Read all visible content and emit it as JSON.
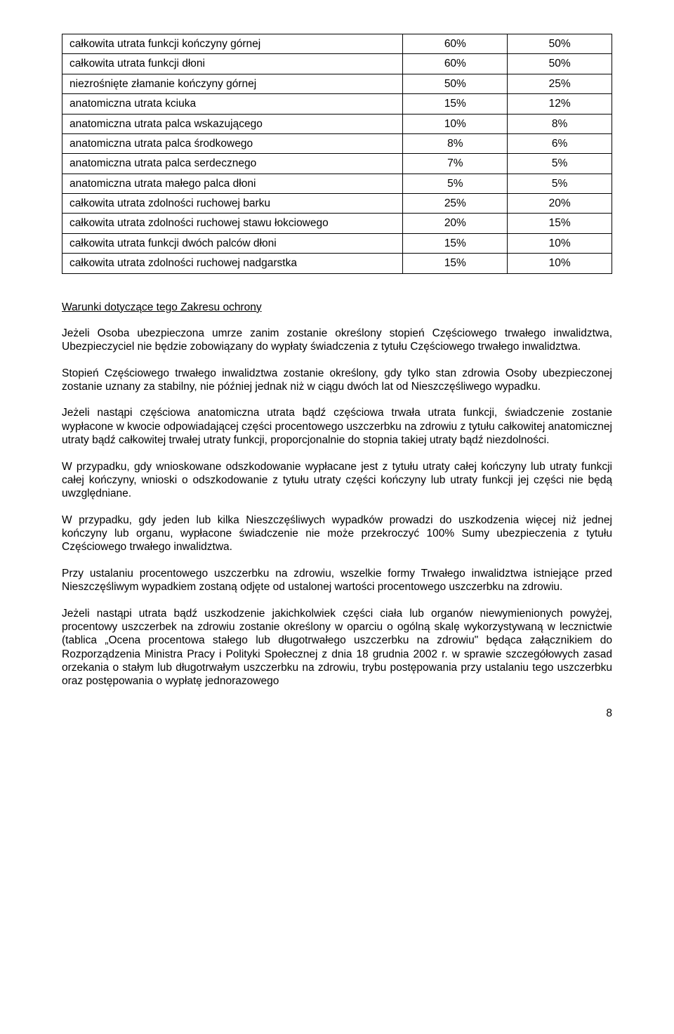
{
  "table": {
    "col_widths": [
      "62%",
      "19%",
      "19%"
    ],
    "rows": [
      {
        "desc": "całkowita utrata funkcji kończyny górnej",
        "c1": "60%",
        "c2": "50%"
      },
      {
        "desc": "całkowita utrata funkcji dłoni",
        "c1": "60%",
        "c2": "50%"
      },
      {
        "desc": "niezrośnięte złamanie kończyny górnej",
        "c1": "50%",
        "c2": "25%"
      },
      {
        "desc": "anatomiczna utrata kciuka",
        "c1": "15%",
        "c2": "12%"
      },
      {
        "desc": "anatomiczna utrata palca wskazującego",
        "c1": "10%",
        "c2": "8%"
      },
      {
        "desc": "anatomiczna utrata palca środkowego",
        "c1": "8%",
        "c2": "6%"
      },
      {
        "desc": "anatomiczna utrata palca serdecznego",
        "c1": "7%",
        "c2": "5%"
      },
      {
        "desc": "anatomiczna utrata małego palca dłoni",
        "c1": "5%",
        "c2": "5%"
      },
      {
        "desc": "całkowita utrata zdolności ruchowej barku",
        "c1": "25%",
        "c2": "20%"
      },
      {
        "desc": "całkowita utrata zdolności ruchowej stawu łokciowego",
        "c1": "20%",
        "c2": "15%"
      },
      {
        "desc": "całkowita utrata funkcji dwóch palców dłoni",
        "c1": "15%",
        "c2": "10%"
      },
      {
        "desc": "całkowita utrata zdolności ruchowej nadgarstka",
        "c1": "15%",
        "c2": "10%"
      }
    ]
  },
  "heading": "Warunki dotyczące tego Zakresu ochrony",
  "paragraphs": [
    "Jeżeli Osoba ubezpieczona umrze zanim zostanie określony stopień Częściowego trwałego inwalidztwa, Ubezpieczyciel nie będzie zobowiązany do wypłaty świadczenia z tytułu Częściowego trwałego inwalidztwa.",
    "Stopień Częściowego trwałego inwalidztwa zostanie określony, gdy tylko stan zdrowia Osoby ubezpieczonej zostanie uznany za stabilny, nie później jednak niż w ciągu dwóch lat od Nieszczęśliwego wypadku.",
    "Jeżeli nastąpi częściowa anatomiczna utrata bądź częściowa trwała utrata funkcji, świadczenie zostanie wypłacone w kwocie odpowiadającej części procentowego uszczerbku na zdrowiu z tytułu całkowitej anatomicznej utraty bądź całkowitej trwałej utraty funkcji, proporcjonalnie do stopnia takiej utraty bądź niezdolności.",
    "W przypadku, gdy wnioskowane odszkodowanie wypłacane jest z tytułu utraty całej kończyny lub utraty funkcji całej kończyny, wnioski o odszkodowanie z tytułu utraty części kończyny lub utraty funkcji jej części nie będą uwzględniane.",
    "W przypadku, gdy jeden lub kilka Nieszczęśliwych wypadków prowadzi do uszkodzenia więcej niż jednej kończyny lub organu, wypłacone świadczenie nie może przekroczyć 100% Sumy ubezpieczenia z tytułu Częściowego trwałego inwalidztwa.",
    "Przy ustalaniu procentowego uszczerbku na zdrowiu, wszelkie formy Trwałego inwalidztwa istniejące przed Nieszczęśliwym wypadkiem zostaną odjęte od ustalonej wartości procentowego uszczerbku na zdrowiu.",
    "Jeżeli nastąpi utrata bądź uszkodzenie jakichkolwiek części ciała lub organów niewymienionych powyżej, procentowy uszczerbek na zdrowiu zostanie określony w oparciu o ogólną skalę wykorzystywaną\nw lecznictwie (tablica „Ocena procentowa stałego lub długotrwałego uszczerbku na zdrowiu\" będąca załącznikiem do Rozporządzenia Ministra Pracy i Polityki Społecznej z dnia 18 grudnia 2002 r. w sprawie szczegółowych zasad orzekania o stałym lub długotrwałym uszczerbku na zdrowiu, trybu postępowania przy ustalaniu tego uszczerbku oraz postępowania o wypłatę jednorazowego"
  ],
  "page_number": "8"
}
